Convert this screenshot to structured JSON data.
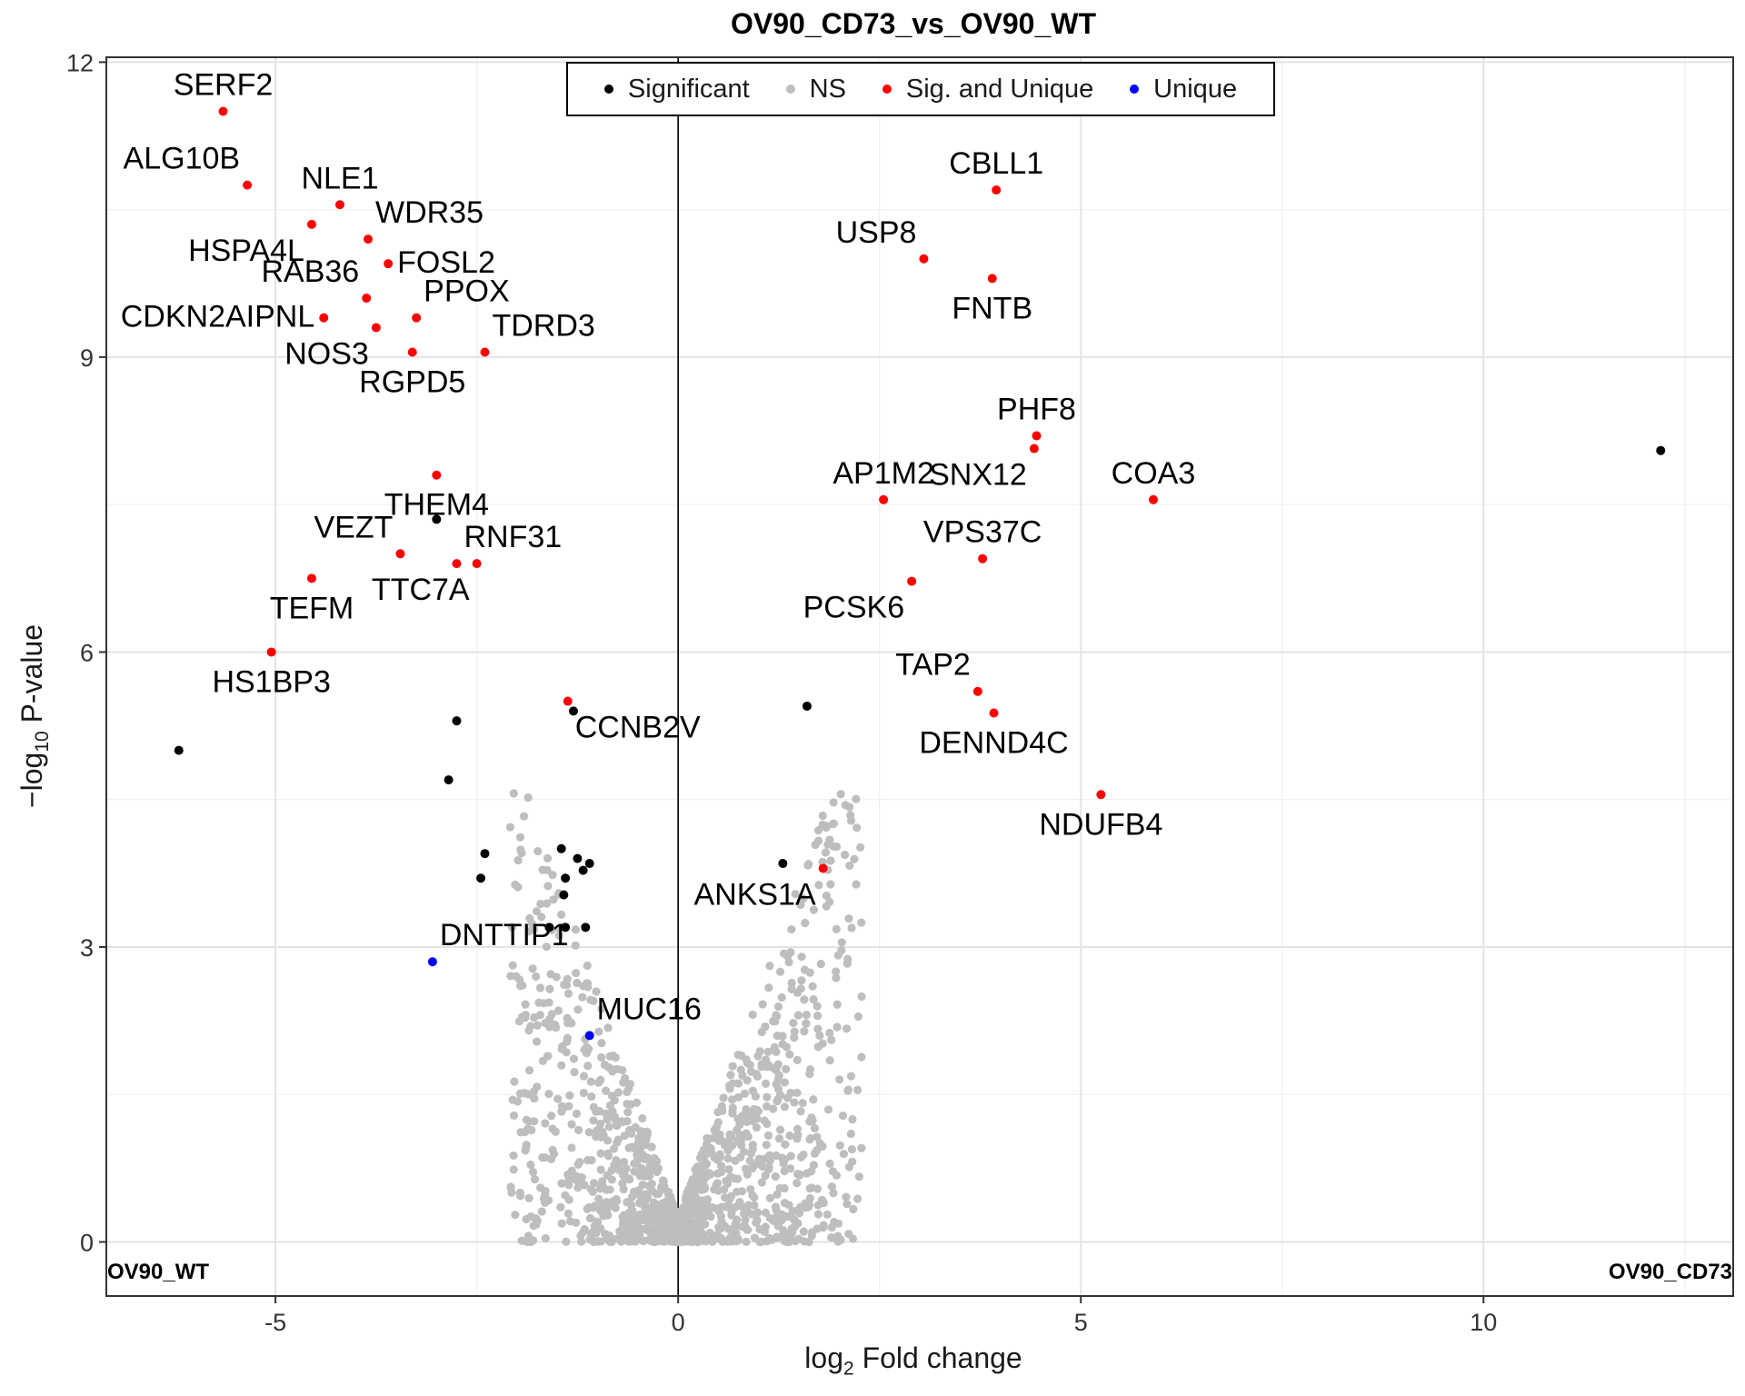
{
  "chart_data": {
    "type": "scatter",
    "title": "OV90_CD73_vs_OV90_WT",
    "xlabel": "log2 Fold change",
    "ylabel": "−log10 P-value",
    "xlim": [
      -7.1,
      13.1
    ],
    "ylim": [
      -0.55,
      12.05
    ],
    "x_ticks": [
      -5,
      0,
      5,
      10
    ],
    "x_tick_labels": [
      "-5",
      "0",
      "5",
      "10"
    ],
    "y_ticks": [
      0,
      3,
      6,
      9,
      12
    ],
    "y_tick_labels": [
      "0",
      "3",
      "6",
      "9",
      "12"
    ],
    "grid": true,
    "vline_at": 0,
    "legend_position": "top-center",
    "corner_labels": {
      "left": "OV90_WT",
      "right": "OV90_CD73"
    },
    "categories": [
      {
        "name": "Significant",
        "color": "#000000"
      },
      {
        "name": "NS",
        "color": "#bebebe"
      },
      {
        "name": "Sig. and Unique",
        "color": "#ff0000"
      },
      {
        "name": "Unique",
        "color": "#0000ff"
      }
    ],
    "labeled_points": [
      {
        "gene": "SERF2",
        "x": -5.65,
        "y": 11.5,
        "category": "Sig. and Unique",
        "label_pos": "above"
      },
      {
        "gene": "ALG10B",
        "x": -5.35,
        "y": 10.75,
        "category": "Sig. and Unique",
        "label_pos": "above-left"
      },
      {
        "gene": "NLE1",
        "x": -4.2,
        "y": 10.55,
        "category": "Sig. and Unique",
        "label_pos": "above"
      },
      {
        "gene": "HSPA4L",
        "x": -4.55,
        "y": 10.35,
        "category": "Sig. and Unique",
        "label_pos": "below-left"
      },
      {
        "gene": "WDR35",
        "x": -3.85,
        "y": 10.2,
        "category": "Sig. and Unique",
        "label_pos": "above-right"
      },
      {
        "gene": "FOSL2",
        "x": -3.6,
        "y": 9.95,
        "category": "Sig. and Unique",
        "label_pos": "right"
      },
      {
        "gene": "RAB36",
        "x": -3.87,
        "y": 9.6,
        "category": "Sig. and Unique",
        "label_pos": "above-left"
      },
      {
        "gene": "PPOX",
        "x": -3.25,
        "y": 9.4,
        "category": "Sig. and Unique",
        "label_pos": "above-right"
      },
      {
        "gene": "CDKN2AIPNL",
        "x": -4.4,
        "y": 9.4,
        "category": "Sig. and Unique",
        "label_pos": "left"
      },
      {
        "gene": "NOS3",
        "x": -3.75,
        "y": 9.3,
        "category": "Sig. and Unique",
        "label_pos": "below-left"
      },
      {
        "gene": "TDRD3",
        "x": -2.4,
        "y": 9.05,
        "category": "Sig. and Unique",
        "label_pos": "above-right"
      },
      {
        "gene": "RGPD5",
        "x": -3.3,
        "y": 9.05,
        "category": "Sig. and Unique",
        "label_pos": "below"
      },
      {
        "gene": "THEM4",
        "x": -3.0,
        "y": 7.8,
        "category": "Sig. and Unique",
        "label_pos": "below"
      },
      {
        "gene": "VEZT",
        "x": -3.45,
        "y": 7.0,
        "category": "Sig. and Unique",
        "label_pos": "above-left"
      },
      {
        "gene": "RNF31",
        "x": -2.75,
        "y": 6.9,
        "category": "Sig. and Unique",
        "label_pos": "above-right"
      },
      {
        "gene": "TTC7A",
        "x": -2.5,
        "y": 6.9,
        "category": "Sig. and Unique",
        "label_pos": "below-left"
      },
      {
        "gene": "TEFM",
        "x": -4.55,
        "y": 6.75,
        "category": "Sig. and Unique",
        "label_pos": "below"
      },
      {
        "gene": "HS1BP3",
        "x": -5.05,
        "y": 6.0,
        "category": "Sig. and Unique",
        "label_pos": "below"
      },
      {
        "gene": "CCNB2V",
        "x": -1.37,
        "y": 5.5,
        "category": "Sig. and Unique",
        "label_pos": "below-right"
      },
      {
        "gene": "DNTTIP1",
        "x": -3.05,
        "y": 2.85,
        "category": "Unique",
        "label_pos": "above-right"
      },
      {
        "gene": "MUC16",
        "x": -1.1,
        "y": 2.1,
        "category": "Unique",
        "label_pos": "above-right"
      },
      {
        "gene": "CBLL1",
        "x": 3.95,
        "y": 10.7,
        "category": "Sig. and Unique",
        "label_pos": "above"
      },
      {
        "gene": "USP8",
        "x": 3.05,
        "y": 10.0,
        "category": "Sig. and Unique",
        "label_pos": "above-left"
      },
      {
        "gene": "FNTB",
        "x": 3.9,
        "y": 9.8,
        "category": "Sig. and Unique",
        "label_pos": "below"
      },
      {
        "gene": "PHF8",
        "x": 4.45,
        "y": 8.2,
        "category": "Sig. and Unique",
        "label_pos": "above"
      },
      {
        "gene": "SNX12",
        "x": 4.42,
        "y": 8.07,
        "category": "Sig. and Unique",
        "label_pos": "below-left"
      },
      {
        "gene": "AP1M2",
        "x": 2.55,
        "y": 7.55,
        "category": "Sig. and Unique",
        "label_pos": "above"
      },
      {
        "gene": "COA3",
        "x": 5.9,
        "y": 7.55,
        "category": "Sig. and Unique",
        "label_pos": "above"
      },
      {
        "gene": "VPS37C",
        "x": 3.78,
        "y": 6.95,
        "category": "Sig. and Unique",
        "label_pos": "above"
      },
      {
        "gene": "PCSK6",
        "x": 2.9,
        "y": 6.72,
        "category": "Sig. and Unique",
        "label_pos": "below-left"
      },
      {
        "gene": "TAP2",
        "x": 3.72,
        "y": 5.6,
        "category": "Sig. and Unique",
        "label_pos": "above-left"
      },
      {
        "gene": "DENND4C",
        "x": 3.92,
        "y": 5.38,
        "category": "Sig. and Unique",
        "label_pos": "below"
      },
      {
        "gene": "NDUFB4",
        "x": 5.25,
        "y": 4.55,
        "category": "Sig. and Unique",
        "label_pos": "below"
      },
      {
        "gene": "ANKS1A",
        "x": 1.8,
        "y": 3.8,
        "category": "Sig. and Unique",
        "label_pos": "below-left"
      }
    ],
    "significant_points": [
      {
        "x": 12.2,
        "y": 8.05
      },
      {
        "x": -6.2,
        "y": 5.0
      },
      {
        "x": -2.75,
        "y": 5.3
      },
      {
        "x": -2.85,
        "y": 4.7
      },
      {
        "x": -3.0,
        "y": 7.35
      },
      {
        "x": 1.6,
        "y": 5.45
      },
      {
        "x": 1.3,
        "y": 3.85
      },
      {
        "x": -1.3,
        "y": 5.4
      },
      {
        "x": -2.4,
        "y": 3.95
      },
      {
        "x": -2.45,
        "y": 3.7
      },
      {
        "x": -1.45,
        "y": 4.0
      },
      {
        "x": -1.25,
        "y": 3.9
      },
      {
        "x": -1.1,
        "y": 3.85
      },
      {
        "x": -1.18,
        "y": 3.78
      },
      {
        "x": -1.4,
        "y": 3.7
      },
      {
        "x": -1.42,
        "y": 3.53
      },
      {
        "x": -1.6,
        "y": 3.2
      },
      {
        "x": -1.4,
        "y": 3.2
      },
      {
        "x": -1.15,
        "y": 3.2
      }
    ],
    "ns_cloud": {
      "description_values": "dense volcano-shaped cluster of non-significant points",
      "x_range": [
        -2.2,
        2.4
      ],
      "y_range": [
        0,
        4.6
      ]
    }
  }
}
